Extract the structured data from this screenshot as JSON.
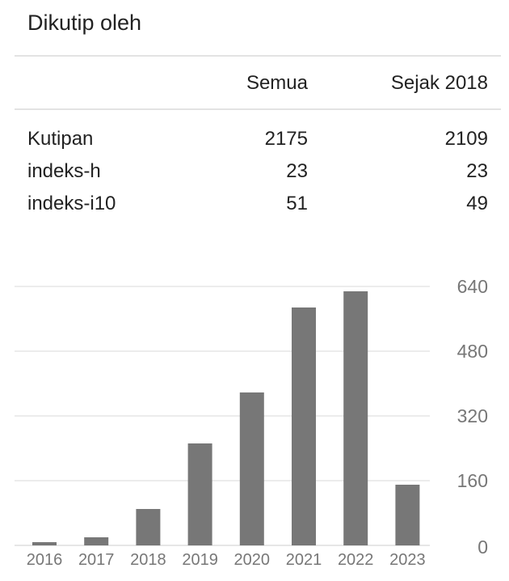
{
  "title": "Dikutip oleh",
  "table": {
    "headers": [
      "",
      "Semua",
      "Sejak 2018"
    ],
    "rows": [
      {
        "label": "Kutipan",
        "all": "2175",
        "since": "2109"
      },
      {
        "label": "indeks-h",
        "all": "23",
        "since": "23"
      },
      {
        "label": "indeks-i10",
        "all": "51",
        "since": "49"
      }
    ]
  },
  "colors": {
    "bar": "#777777",
    "grid": "#e6e6e6",
    "axis_text": "#777777",
    "text": "#222222"
  },
  "chart_data": {
    "type": "bar",
    "categories": [
      "2016",
      "2017",
      "2018",
      "2019",
      "2020",
      "2021",
      "2022",
      "2023"
    ],
    "values": [
      8,
      20,
      90,
      252,
      378,
      588,
      628,
      150
    ],
    "yticks": [
      0,
      160,
      320,
      480,
      640
    ],
    "ylim": [
      0,
      640
    ],
    "grid": true,
    "yaxis_position": "right"
  }
}
